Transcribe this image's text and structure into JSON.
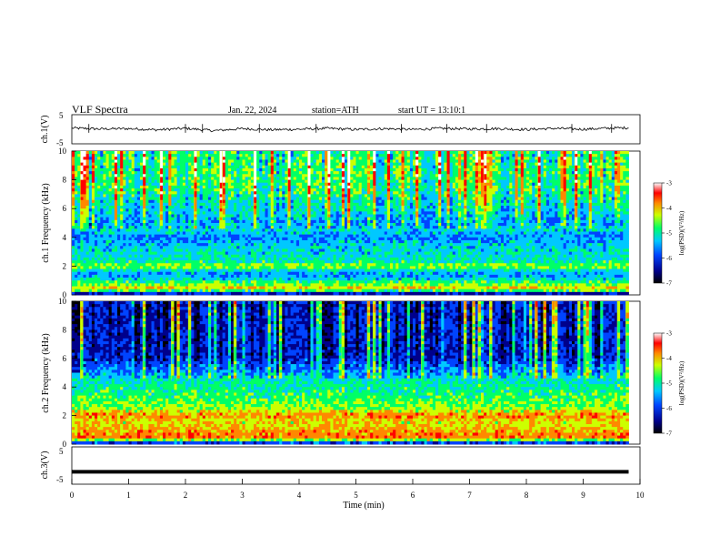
{
  "header": {
    "title": "VLF Spectra",
    "date": "Jan. 22, 2024",
    "station": "station=ATH",
    "start": "start UT = 13:10:1"
  },
  "chart_data": [
    {
      "type": "line",
      "panel": "ch1-waveform",
      "ylabel": "ch.1(V)",
      "ylim": [
        -5,
        5
      ],
      "yticks": [
        "5",
        "-5"
      ],
      "x": [
        0,
        0.5,
        1,
        1.5,
        2,
        2.5,
        3,
        3.5,
        4,
        4.5,
        5,
        5.5,
        6,
        6.5,
        7,
        7.5,
        8,
        8.5,
        9,
        9.5,
        9.8
      ],
      "series": [
        {
          "values": [
            0.4,
            0.1,
            0.2,
            -0.2,
            0.3,
            -0.5,
            0.2,
            -0.2,
            0.0,
            0.3,
            -0.1,
            0.2,
            -0.1,
            0.3,
            0.1,
            0.2,
            -0.1,
            0.3,
            0.0,
            0.4,
            0.5
          ]
        }
      ],
      "spikes_min": [
        0.3,
        2.0,
        2.3,
        3.3,
        4.3,
        5.8,
        6.6,
        7.3,
        8.8,
        9.5
      ]
    },
    {
      "type": "heatmap",
      "panel": "ch1-spectrogram",
      "ylabel": "ch.1 Frequency (kHz)",
      "xlim": [
        0,
        10
      ],
      "ylim": [
        0,
        10
      ],
      "yticks": [
        "0",
        "2",
        "4",
        "6",
        "8",
        "10"
      ],
      "data_extent_min": 9.8,
      "colorbar": {
        "label": "log(PSD)(V²/Hz)",
        "range": [
          -7,
          -3
        ],
        "ticks": [
          "-3",
          "-4",
          "-5",
          "-6",
          "-7"
        ]
      },
      "freq_profile_khz": [
        0,
        0.4,
        0.8,
        1.2,
        1.6,
        2.0,
        2.4,
        3.0,
        3.5,
        4.0,
        4.5,
        5.0,
        6.0,
        7.0,
        8.0,
        9.0,
        10.0
      ],
      "freq_profile_level": [
        -7.0,
        -4.2,
        -4.8,
        -5.6,
        -5.6,
        -4.6,
        -5.3,
        -5.4,
        -5.5,
        -5.7,
        -5.4,
        -5.6,
        -5.3,
        -5.0,
        -4.9,
        -4.9,
        -4.9
      ]
    },
    {
      "type": "heatmap",
      "panel": "ch2-spectrogram",
      "ylabel": "ch.2 Frequency (kHz)",
      "xlim": [
        0,
        10
      ],
      "ylim": [
        0,
        10
      ],
      "yticks": [
        "0",
        "2",
        "4",
        "6",
        "8",
        "10"
      ],
      "data_extent_min": 9.8,
      "colorbar": {
        "label": "log(PSD)(V²/Hz)",
        "range": [
          -7,
          -3
        ],
        "ticks": [
          "-3",
          "-4",
          "-5",
          "-6",
          "-7"
        ]
      },
      "freq_profile_khz": [
        0,
        0.4,
        0.8,
        1.2,
        1.6,
        2.0,
        2.4,
        3.0,
        3.5,
        4.0,
        4.5,
        5.0,
        6.0,
        7.0,
        8.0,
        9.0,
        10.0
      ],
      "freq_profile_level": [
        -6.8,
        -3.9,
        -4.0,
        -4.3,
        -4.4,
        -3.9,
        -4.6,
        -4.9,
        -5.0,
        -5.1,
        -5.3,
        -5.6,
        -6.2,
        -6.2,
        -6.2,
        -6.2,
        -6.2
      ]
    },
    {
      "type": "line",
      "panel": "ch3-waveform",
      "ylabel": "ch.3(V)",
      "xlabel": "Time (min)",
      "ylim": [
        -5,
        5
      ],
      "yticks": [
        "5",
        "-5"
      ],
      "xlim": [
        0,
        10
      ],
      "xticks": [
        "0",
        "1",
        "2",
        "3",
        "4",
        "5",
        "6",
        "7",
        "8",
        "9",
        "10"
      ],
      "x": [
        0,
        9.8
      ],
      "series": [
        {
          "values": [
            -2.3,
            -2.3
          ]
        }
      ]
    }
  ],
  "colors": {
    "background": "#ffffff",
    "axis": "#000000",
    "trace": "#000000",
    "colormap": [
      "#000000",
      "#00008b",
      "#0044ff",
      "#00c8ff",
      "#00ff66",
      "#ccff00",
      "#ff8800",
      "#ff0000",
      "#ffffff"
    ]
  }
}
